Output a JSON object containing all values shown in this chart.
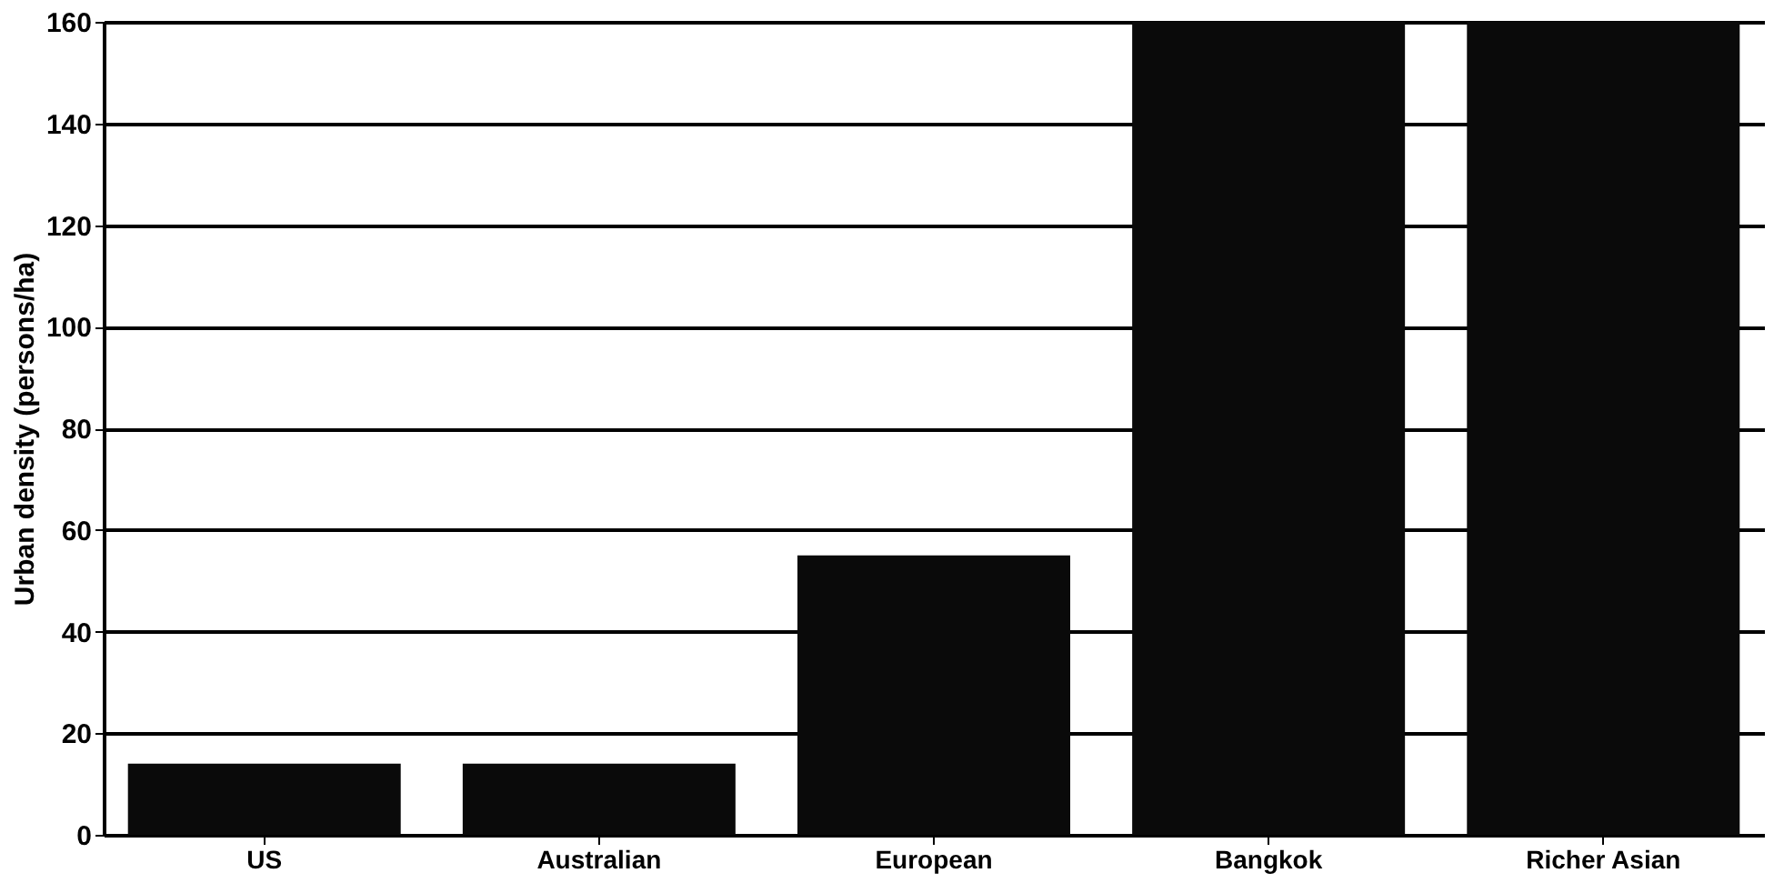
{
  "chart_data": {
    "type": "bar",
    "ylabel": "Urban density (persons/ha)",
    "categories": [
      "US",
      "Australian",
      "European",
      "Bangkok",
      "Richer Asian"
    ],
    "values": [
      14,
      14,
      55,
      160,
      160
    ],
    "color": "#0a0a0a",
    "ylim": [
      0,
      160
    ],
    "yticks": [
      0,
      20,
      40,
      60,
      80,
      100,
      120,
      140,
      160
    ],
    "grid": "y"
  }
}
